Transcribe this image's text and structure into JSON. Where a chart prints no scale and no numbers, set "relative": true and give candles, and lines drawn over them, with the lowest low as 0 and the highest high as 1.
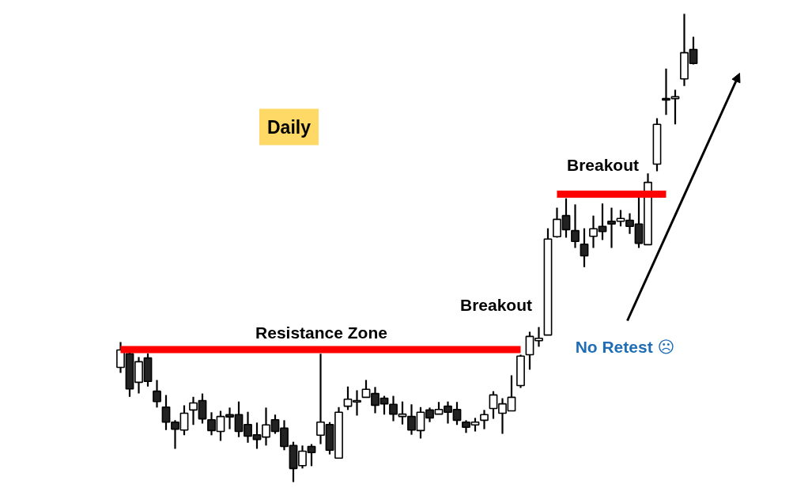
{
  "chart_data": {
    "type": "candlestick",
    "title": "Daily",
    "relative": true,
    "categories": [
      null,
      null,
      null,
      null,
      null,
      null,
      null,
      null,
      null,
      null,
      null,
      null,
      null,
      null,
      null,
      null,
      null,
      null,
      null,
      null,
      null,
      null,
      null,
      null,
      null,
      null,
      null,
      null,
      null,
      null,
      null,
      null,
      null,
      null,
      null,
      null,
      null,
      null,
      null,
      null,
      null,
      null,
      null,
      null,
      null,
      null,
      null,
      null,
      null,
      null,
      null,
      null,
      null,
      null,
      null,
      null,
      null,
      null,
      null,
      null,
      null,
      null,
      null,
      null
    ],
    "ohlc": [
      [
        0.245,
        0.299,
        0.233,
        0.282
      ],
      [
        0.274,
        0.279,
        0.182,
        0.199
      ],
      [
        0.213,
        0.267,
        0.189,
        0.257
      ],
      [
        0.265,
        0.275,
        0.204,
        0.215
      ],
      [
        0.194,
        0.218,
        0.159,
        0.172
      ],
      [
        0.16,
        0.186,
        0.111,
        0.128
      ],
      [
        0.128,
        0.132,
        0.071,
        0.113
      ],
      [
        0.111,
        0.164,
        0.1,
        0.147
      ],
      [
        0.154,
        0.182,
        0.122,
        0.169
      ],
      [
        0.174,
        0.189,
        0.125,
        0.135
      ],
      [
        0.133,
        0.149,
        0.1,
        0.11
      ],
      [
        0.108,
        0.152,
        0.088,
        0.14
      ],
      [
        0.144,
        0.159,
        0.113,
        0.139
      ],
      [
        0.144,
        0.172,
        0.096,
        0.108
      ],
      [
        0.123,
        0.15,
        0.084,
        0.098
      ],
      [
        0.101,
        0.127,
        0.071,
        0.091
      ],
      [
        0.096,
        0.159,
        0.078,
        0.122
      ],
      [
        0.133,
        0.144,
        0.103,
        0.108
      ],
      [
        0.115,
        0.132,
        0.068,
        0.076
      ],
      [
        0.078,
        0.086,
        0,
        0.029
      ],
      [
        0.035,
        0.078,
        0.029,
        0.066
      ],
      [
        0.076,
        0.081,
        0.034,
        0.063
      ],
      [
        0.1,
        0.274,
        0.081,
        0.128
      ],
      [
        0.123,
        0.128,
        0.059,
        0.068
      ],
      [
        0.051,
        0.16,
        0.051,
        0.149
      ],
      [
        0.162,
        0.204,
        0.154,
        0.177
      ],
      [
        0.171,
        0.196,
        0.142,
        0.174
      ],
      [
        0.181,
        0.218,
        0.181,
        0.198
      ],
      [
        0.189,
        0.203,
        0.147,
        0.164
      ],
      [
        0.179,
        0.184,
        0.144,
        0.167
      ],
      [
        0.166,
        0.184,
        0.13,
        0.145
      ],
      [
        0.14,
        0.172,
        0.123,
        0.145
      ],
      [
        0.14,
        0.166,
        0.101,
        0.111
      ],
      [
        0.11,
        0.16,
        0.093,
        0.149
      ],
      [
        0.154,
        0.159,
        0.128,
        0.137
      ],
      [
        0.145,
        0.171,
        0.145,
        0.155
      ],
      [
        0.162,
        0.172,
        0.125,
        0.149
      ],
      [
        0.155,
        0.171,
        0.122,
        0.132
      ],
      [
        0.128,
        0.132,
        0.105,
        0.117
      ],
      [
        0.122,
        0.137,
        0.108,
        0.128
      ],
      [
        0.132,
        0.154,
        0.113,
        0.144
      ],
      [
        0.157,
        0.194,
        0.135,
        0.186
      ],
      [
        0.147,
        0.179,
        0.103,
        0.167
      ],
      [
        0.152,
        0.228,
        0.152,
        0.181
      ],
      [
        0.206,
        0.272,
        0.201,
        0.269
      ],
      [
        0.272,
        0.321,
        0.24,
        0.311
      ],
      [
        0.302,
        0.331,
        0.289,
        0.307
      ],
      [
        0.314,
        0.542,
        0.314,
        0.519
      ],
      [
        0.524,
        0.586,
        0.522,
        0.561
      ],
      [
        0.569,
        0.606,
        0.522,
        0.539
      ],
      [
        0.537,
        0.593,
        0.5,
        0.514
      ],
      [
        0.508,
        0.542,
        0.459,
        0.483
      ],
      [
        0.525,
        0.569,
        0.5,
        0.541
      ],
      [
        0.546,
        0.595,
        0.517,
        0.535
      ],
      [
        0.557,
        0.586,
        0.5,
        0.551
      ],
      [
        0.557,
        0.581,
        0.546,
        0.563
      ],
      [
        0.559,
        0.574,
        0.53,
        0.546
      ],
      [
        0.551,
        0.608,
        0.5,
        0.51
      ],
      [
        0.507,
        0.659,
        0.507,
        0.64
      ],
      [
        0.679,
        0.777,
        0.664,
        0.764
      ],
      [
        0.819,
        0.883,
        0.784,
        0.816
      ],
      [
        0.819,
        0.838,
        0.764,
        0.823
      ],
      [
        0.861,
        1,
        0.846,
        0.917
      ],
      [
        0.924,
        0.951,
        0.892,
        0.894
      ]
    ],
    "series": [
      {
        "type": "line",
        "color": "#ff0000",
        "values": [
          0.283,
          0.283,
          0.283,
          0.283,
          0.283,
          0.283,
          0.283,
          0.283,
          0.283,
          0.283,
          0.283,
          0.283,
          0.283,
          0.283,
          0.283,
          0.283,
          0.283,
          0.283,
          0.283,
          0.283,
          0.283,
          0.283,
          0.283,
          0.283,
          0.283,
          0.283,
          0.283,
          0.283,
          0.283,
          0.283,
          0.283,
          0.283,
          0.283,
          0.283,
          0.283,
          0.283,
          0.283,
          0.283,
          0.283,
          0.283,
          0.283,
          0.283,
          0.283,
          0.283,
          0.283,
          null,
          null,
          null,
          null,
          null,
          null,
          null,
          null,
          null,
          null,
          null,
          null,
          null,
          null,
          null,
          null,
          null,
          null,
          null
        ]
      },
      {
        "type": "line",
        "color": "#ff0000",
        "values": [
          null,
          null,
          null,
          null,
          null,
          null,
          null,
          null,
          null,
          null,
          null,
          null,
          null,
          null,
          null,
          null,
          null,
          null,
          null,
          null,
          null,
          null,
          null,
          null,
          null,
          null,
          null,
          null,
          null,
          null,
          null,
          null,
          null,
          null,
          null,
          null,
          null,
          null,
          null,
          null,
          null,
          null,
          null,
          null,
          null,
          null,
          null,
          null,
          0.615,
          0.615,
          0.615,
          0.615,
          0.615,
          0.615,
          0.615,
          0.615,
          0.615,
          0.615,
          0.615,
          0.615,
          0.615,
          null,
          null,
          null
        ]
      }
    ],
    "annotations": [
      "Resistance Zone",
      "Breakout",
      "Breakout",
      "No Retest ☹"
    ]
  }
}
